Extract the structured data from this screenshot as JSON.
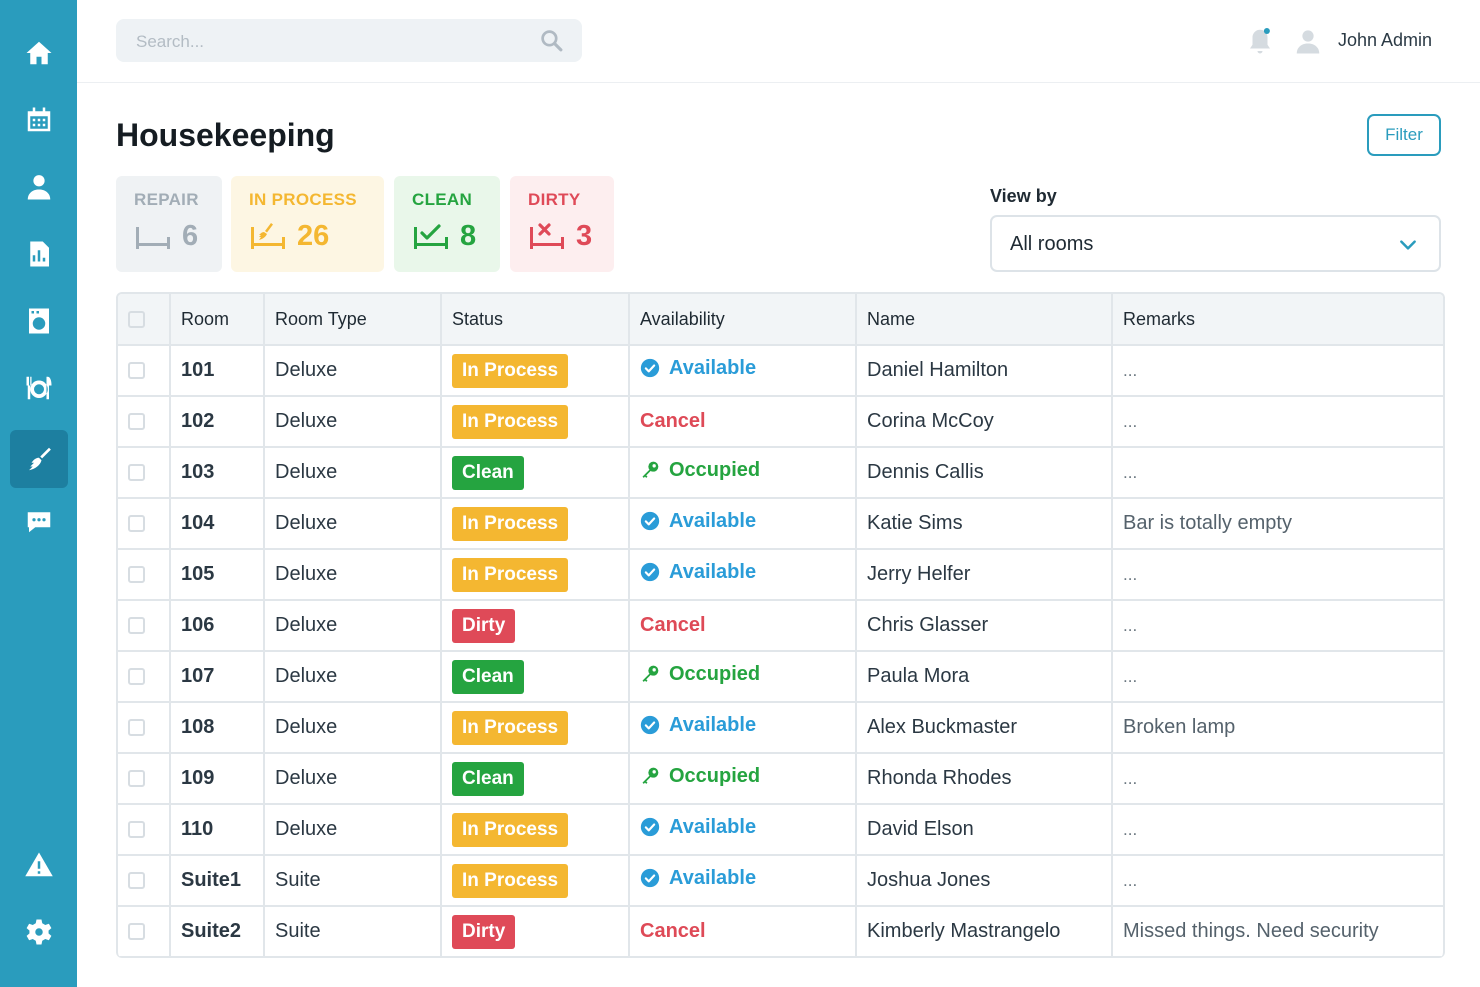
{
  "colors": {
    "sidebar": "#2a9cbd",
    "accent": "#2a9cbd",
    "in_process": "#f4b731",
    "clean": "#25a440",
    "dirty": "#df4a58",
    "available": "#2a9cd8",
    "repair": "#9aa7b1"
  },
  "sidebar": {
    "items": [
      {
        "icon": "home-icon"
      },
      {
        "icon": "calendar-icon"
      },
      {
        "icon": "user-icon"
      },
      {
        "icon": "report-icon"
      },
      {
        "icon": "laundry-icon"
      },
      {
        "icon": "dining-icon"
      },
      {
        "icon": "housekeeping-icon",
        "active": true
      },
      {
        "icon": "chat-icon"
      },
      {
        "icon": "alert-icon"
      },
      {
        "icon": "settings-icon"
      }
    ]
  },
  "topbar": {
    "search_placeholder": "Search...",
    "user_name": "John Admin"
  },
  "page": {
    "title": "Housekeeping",
    "filter_label": "Filter"
  },
  "stats": {
    "repair": {
      "label": "REPAIR",
      "count": "6"
    },
    "in_process": {
      "label": "IN PROCESS",
      "count": "26"
    },
    "clean": {
      "label": "CLEAN",
      "count": "8"
    },
    "dirty": {
      "label": "DIRTY",
      "count": "3"
    }
  },
  "view_by": {
    "label": "View by",
    "selected": "All rooms"
  },
  "table": {
    "headers": [
      "Room",
      "Room Type",
      "Status",
      "Availability",
      "Name",
      "Remarks"
    ],
    "rows": [
      {
        "room": "101",
        "type": "Deluxe",
        "status": "In Process",
        "availability": "Available",
        "name": "Daniel Hamilton",
        "remarks": "..."
      },
      {
        "room": "102",
        "type": "Deluxe",
        "status": "In Process",
        "availability": "Cancel",
        "name": "Corina McCoy",
        "remarks": "..."
      },
      {
        "room": "103",
        "type": "Deluxe",
        "status": "Clean",
        "availability": "Occupied",
        "name": "Dennis Callis",
        "remarks": "..."
      },
      {
        "room": "104",
        "type": "Deluxe",
        "status": "In Process",
        "availability": "Available",
        "name": "Katie Sims",
        "remarks": "Bar is totally empty"
      },
      {
        "room": "105",
        "type": "Deluxe",
        "status": "In Process",
        "availability": "Available",
        "name": "Jerry Helfer",
        "remarks": "..."
      },
      {
        "room": "106",
        "type": "Deluxe",
        "status": "Dirty",
        "availability": "Cancel",
        "name": "Chris Glasser",
        "remarks": "..."
      },
      {
        "room": "107",
        "type": "Deluxe",
        "status": "Clean",
        "availability": "Occupied",
        "name": "Paula Mora",
        "remarks": "..."
      },
      {
        "room": "108",
        "type": "Deluxe",
        "status": "In Process",
        "availability": "Available",
        "name": "Alex Buckmaster",
        "remarks": "Broken lamp"
      },
      {
        "room": "109",
        "type": "Deluxe",
        "status": "Clean",
        "availability": "Occupied",
        "name": "Rhonda Rhodes",
        "remarks": "..."
      },
      {
        "room": "110",
        "type": "Deluxe",
        "status": "In Process",
        "availability": "Available",
        "name": "David Elson",
        "remarks": "..."
      },
      {
        "room": "Suite1",
        "type": "Suite",
        "status": "In Process",
        "availability": "Available",
        "name": "Joshua Jones",
        "remarks": "..."
      },
      {
        "room": "Suite2",
        "type": "Suite",
        "status": "Dirty",
        "availability": "Cancel",
        "name": "Kimberly Mastrangelo",
        "remarks": "Missed things. Need security"
      }
    ]
  }
}
